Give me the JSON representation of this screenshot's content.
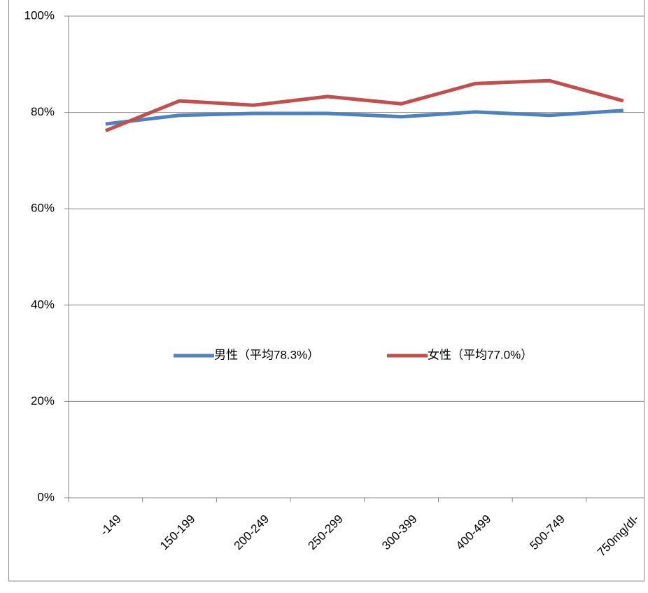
{
  "chart_data": {
    "type": "line",
    "categories": [
      "-149",
      "150-199",
      "200-249",
      "250-299",
      "300-399",
      "400-499",
      "500-749",
      "750mg/dl-"
    ],
    "series": [
      {
        "name": "男性（平均78.3%）",
        "color": "#4f81bd",
        "values": [
          77.6,
          79.4,
          79.8,
          79.8,
          79.1,
          80.1,
          79.4,
          80.4
        ]
      },
      {
        "name": "女性（平均77.0%）",
        "color": "#c0504d",
        "values": [
          76.2,
          82.4,
          81.5,
          83.3,
          81.8,
          86.0,
          86.6,
          82.4
        ]
      }
    ],
    "ylim": [
      0,
      100
    ],
    "yticks": [
      {
        "value": 0,
        "label": "0%"
      },
      {
        "value": 20,
        "label": "20%"
      },
      {
        "value": 40,
        "label": "40%"
      },
      {
        "value": 60,
        "label": "60%"
      },
      {
        "value": 80,
        "label": "80%"
      },
      {
        "value": 100,
        "label": "100%"
      }
    ],
    "grid": true
  }
}
